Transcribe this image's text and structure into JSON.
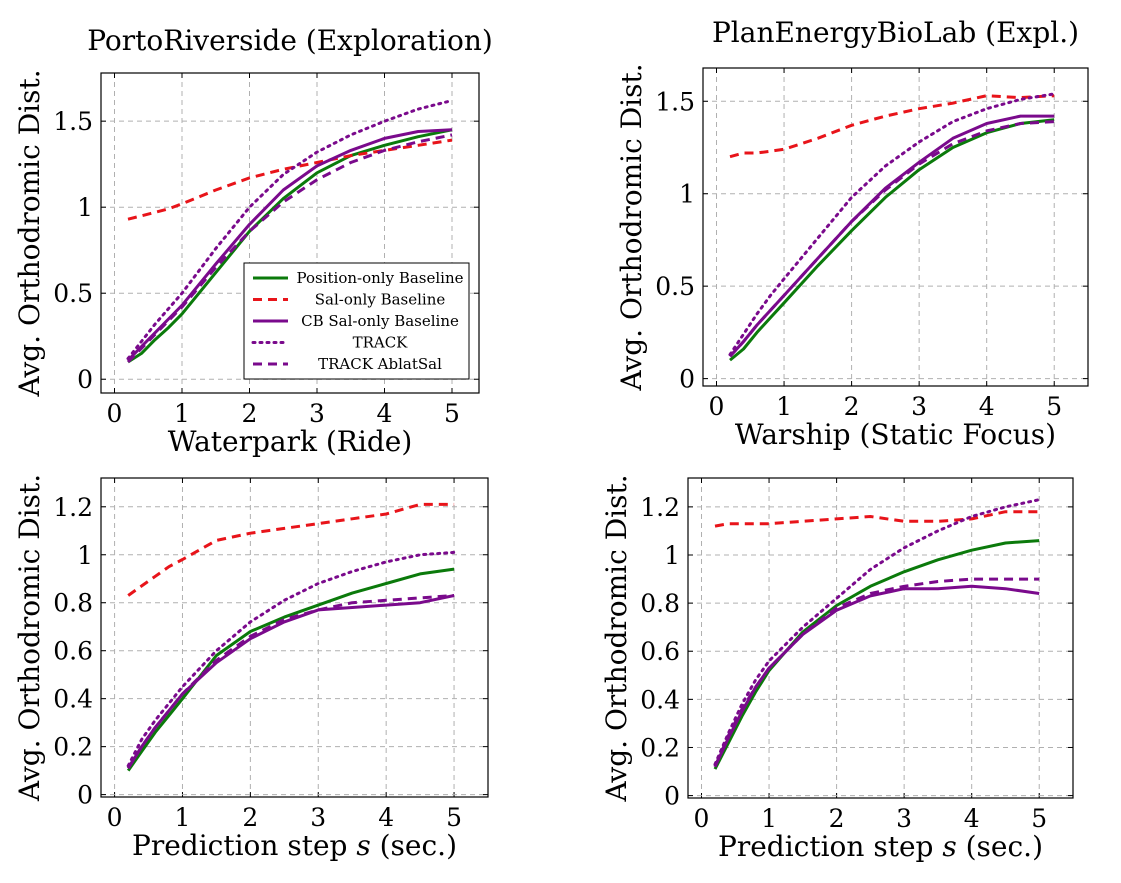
{
  "colors": {
    "green": "#0b7a0b",
    "red": "#e8141a",
    "purple": "#7a0a8c",
    "grid": "#b0b0b0"
  },
  "legend": [
    {
      "label": "Position-only Baseline",
      "color": "green",
      "dash": "solid"
    },
    {
      "label": "Sal-only Baseline",
      "color": "red",
      "dash": "dashed"
    },
    {
      "label": "CB Sal-only Baseline",
      "color": "purple",
      "dash": "solid"
    },
    {
      "label": "TRACK",
      "color": "purple",
      "dash": "dotted"
    },
    {
      "label": "TRACK AblatSal",
      "color": "purple",
      "dash": "dashed"
    }
  ],
  "chart_data": [
    {
      "type": "line",
      "title": "PortoRiverside (Exploration)",
      "xlabel": "Waterpark (Ride)",
      "ylabel": "Avg. Orthodromic Dist.",
      "xlim": [
        -0.2,
        5.4
      ],
      "ylim": [
        -0.08,
        1.78
      ],
      "xticks": [
        "0",
        "1",
        "2",
        "3",
        "4",
        "5"
      ],
      "yticks": [
        "0",
        "0.5",
        "1",
        "1.5"
      ],
      "x": [
        0.2,
        0.4,
        0.6,
        0.8,
        1.0,
        1.5,
        2.0,
        2.5,
        3.0,
        3.5,
        4.0,
        4.5,
        5.0
      ],
      "series": [
        {
          "name": "Position-only Baseline",
          "values": [
            0.1,
            0.15,
            0.23,
            0.3,
            0.38,
            0.62,
            0.86,
            1.05,
            1.2,
            1.3,
            1.36,
            1.41,
            1.45
          ]
        },
        {
          "name": "Sal-only Baseline",
          "values": [
            0.93,
            0.95,
            0.97,
            0.99,
            1.02,
            1.1,
            1.17,
            1.22,
            1.26,
            1.3,
            1.33,
            1.36,
            1.39
          ]
        },
        {
          "name": "CB Sal-only Baseline",
          "values": [
            0.11,
            0.19,
            0.27,
            0.35,
            0.43,
            0.67,
            0.9,
            1.1,
            1.24,
            1.33,
            1.4,
            1.44,
            1.45
          ]
        },
        {
          "name": "TRACK",
          "values": [
            0.12,
            0.22,
            0.32,
            0.41,
            0.5,
            0.76,
            1.0,
            1.19,
            1.32,
            1.42,
            1.5,
            1.57,
            1.62
          ]
        },
        {
          "name": "TRACK AblatSal",
          "values": [
            0.1,
            0.18,
            0.26,
            0.34,
            0.42,
            0.65,
            0.86,
            1.03,
            1.16,
            1.26,
            1.33,
            1.38,
            1.42
          ]
        }
      ]
    },
    {
      "type": "line",
      "title": "PlanEnergyBioLab (Expl.)",
      "xlabel": "Warship (Static Focus)",
      "ylabel": "Avg. Orthodromic Dist.",
      "xlim": [
        -0.2,
        5.5
      ],
      "ylim": [
        -0.04,
        1.68
      ],
      "xticks": [
        "0",
        "1",
        "2",
        "3",
        "4",
        "5"
      ],
      "yticks": [
        "0",
        "0.5",
        "1",
        "1.5"
      ],
      "x": [
        0.2,
        0.4,
        0.6,
        0.8,
        1.0,
        1.5,
        2.0,
        2.5,
        3.0,
        3.5,
        4.0,
        4.5,
        5.0
      ],
      "series": [
        {
          "name": "Position-only Baseline",
          "values": [
            0.1,
            0.16,
            0.25,
            0.33,
            0.41,
            0.61,
            0.8,
            0.98,
            1.13,
            1.25,
            1.33,
            1.38,
            1.4
          ]
        },
        {
          "name": "Sal-only Baseline",
          "values": [
            1.2,
            1.22,
            1.22,
            1.23,
            1.24,
            1.3,
            1.37,
            1.42,
            1.46,
            1.49,
            1.53,
            1.52,
            1.53
          ]
        },
        {
          "name": "CB Sal-only Baseline",
          "values": [
            0.12,
            0.2,
            0.29,
            0.37,
            0.45,
            0.65,
            0.85,
            1.03,
            1.17,
            1.3,
            1.38,
            1.42,
            1.42
          ]
        },
        {
          "name": "TRACK",
          "values": [
            0.13,
            0.24,
            0.35,
            0.45,
            0.54,
            0.76,
            0.98,
            1.15,
            1.28,
            1.39,
            1.46,
            1.51,
            1.54
          ]
        },
        {
          "name": "TRACK AblatSal",
          "values": [
            0.12,
            0.2,
            0.29,
            0.37,
            0.45,
            0.65,
            0.85,
            1.02,
            1.16,
            1.27,
            1.34,
            1.38,
            1.39
          ]
        }
      ]
    },
    {
      "type": "line",
      "title": "",
      "xlabel": "Prediction step s (sec.)",
      "ylabel": "Avg. Orthodromic Dist.",
      "xlim": [
        -0.2,
        5.5
      ],
      "ylim": [
        -0.01,
        1.32
      ],
      "xticks": [
        "0",
        "1",
        "2",
        "3",
        "4",
        "5"
      ],
      "yticks": [
        "0",
        "0.2",
        "0.4",
        "0.6",
        "0.8",
        "1",
        "1.2"
      ],
      "x": [
        0.2,
        0.4,
        0.6,
        0.8,
        1.0,
        1.5,
        2.0,
        2.5,
        3.0,
        3.5,
        4.0,
        4.5,
        5.0
      ],
      "series": [
        {
          "name": "Position-only Baseline",
          "values": [
            0.1,
            0.18,
            0.26,
            0.33,
            0.4,
            0.58,
            0.68,
            0.74,
            0.79,
            0.84,
            0.88,
            0.92,
            0.94
          ]
        },
        {
          "name": "Sal-only Baseline",
          "values": [
            0.83,
            0.87,
            0.91,
            0.95,
            0.98,
            1.06,
            1.09,
            1.11,
            1.13,
            1.15,
            1.17,
            1.21,
            1.21
          ]
        },
        {
          "name": "CB Sal-only Baseline",
          "values": [
            0.11,
            0.2,
            0.28,
            0.35,
            0.42,
            0.55,
            0.65,
            0.72,
            0.77,
            0.78,
            0.79,
            0.8,
            0.83
          ]
        },
        {
          "name": "TRACK",
          "values": [
            0.12,
            0.23,
            0.31,
            0.38,
            0.45,
            0.6,
            0.72,
            0.81,
            0.88,
            0.93,
            0.97,
            1.0,
            1.01
          ]
        },
        {
          "name": "TRACK AblatSal",
          "values": [
            0.11,
            0.2,
            0.28,
            0.35,
            0.42,
            0.56,
            0.66,
            0.73,
            0.77,
            0.8,
            0.81,
            0.82,
            0.83
          ]
        }
      ]
    },
    {
      "type": "line",
      "title": "",
      "xlabel": "Prediction step s (sec.)",
      "ylabel": "Avg. Orthodromic Dist.",
      "xlim": [
        -0.2,
        5.5
      ],
      "ylim": [
        -0.01,
        1.32
      ],
      "xticks": [
        "0",
        "1",
        "2",
        "3",
        "4",
        "5"
      ],
      "yticks": [
        "0",
        "0.2",
        "0.4",
        "0.6",
        "0.8",
        "1",
        "1.2"
      ],
      "x": [
        0.2,
        0.4,
        0.6,
        0.8,
        1.0,
        1.5,
        2.0,
        2.5,
        3.0,
        3.5,
        4.0,
        4.5,
        5.0
      ],
      "series": [
        {
          "name": "Position-only Baseline",
          "values": [
            0.11,
            0.22,
            0.33,
            0.43,
            0.52,
            0.68,
            0.79,
            0.87,
            0.93,
            0.98,
            1.02,
            1.05,
            1.06
          ]
        },
        {
          "name": "Sal-only Baseline",
          "values": [
            1.12,
            1.13,
            1.13,
            1.13,
            1.13,
            1.14,
            1.15,
            1.16,
            1.14,
            1.14,
            1.15,
            1.18,
            1.18
          ]
        },
        {
          "name": "CB Sal-only Baseline",
          "values": [
            0.12,
            0.24,
            0.35,
            0.45,
            0.53,
            0.67,
            0.77,
            0.83,
            0.86,
            0.86,
            0.87,
            0.86,
            0.84
          ]
        },
        {
          "name": "TRACK",
          "values": [
            0.13,
            0.26,
            0.38,
            0.48,
            0.56,
            0.7,
            0.82,
            0.94,
            1.03,
            1.1,
            1.16,
            1.2,
            1.23
          ]
        },
        {
          "name": "TRACK AblatSal",
          "values": [
            0.12,
            0.25,
            0.36,
            0.45,
            0.53,
            0.67,
            0.78,
            0.84,
            0.87,
            0.89,
            0.9,
            0.9,
            0.9
          ]
        }
      ]
    }
  ]
}
